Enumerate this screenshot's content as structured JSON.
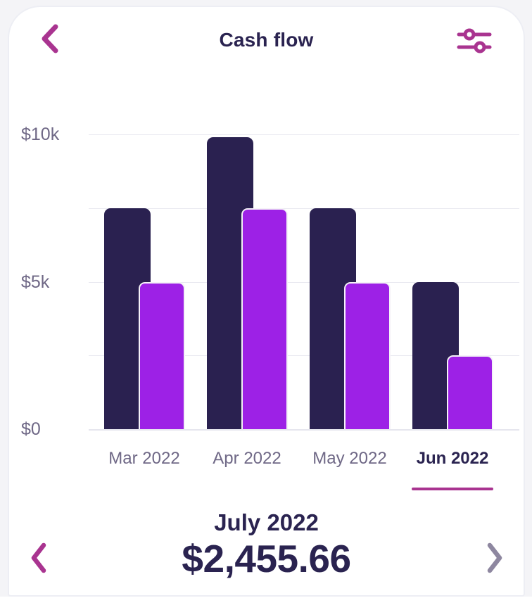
{
  "header": {
    "title": "Cash flow",
    "back_icon": "chevron-left-icon",
    "filter_icon": "sliders-icon"
  },
  "colors": {
    "accent_magenta": "#a93490",
    "bar_dark_navy": "#2a2150",
    "bar_purple": "#9d21e6",
    "text_navy": "#2a2350",
    "label_gray": "#6f6886",
    "gridline": "#e9e9f0",
    "baseline": "#e6e6ee",
    "next_chevron_gray": "#8e87a0",
    "card_border": "#edeef4",
    "page_background": "#f4f4f7"
  },
  "chart_data": {
    "type": "bar",
    "title": "",
    "xlabel": "",
    "ylabel": "",
    "categories": [
      "Mar 2022",
      "Apr 2022",
      "May 2022",
      "Jun 2022"
    ],
    "series": [
      {
        "name": "dark-navy-bars",
        "color": "#2a2150",
        "values": [
          7500,
          9900,
          7500,
          5000
        ]
      },
      {
        "name": "purple-bars",
        "color": "#9d21e6",
        "values": [
          5000,
          7500,
          5000,
          2500
        ]
      }
    ],
    "y_ticks": [
      {
        "label": "$10k",
        "value": 10000
      },
      {
        "label": "$5k",
        "value": 5000
      },
      {
        "label": "$0",
        "value": 0
      }
    ],
    "gridline_values": [
      10000,
      7500,
      5000,
      2500,
      0
    ],
    "ylim": [
      0,
      10000
    ],
    "grid": true,
    "legend": false,
    "selected_category": "Jun 2022",
    "bar_style": "overlapping-pairs, rounded tops, purple drawn on top of navy"
  },
  "pager": {
    "month": "July 2022",
    "amount": "$2,455.66",
    "prev_icon": "chevron-left-icon",
    "next_icon": "chevron-right-icon"
  }
}
